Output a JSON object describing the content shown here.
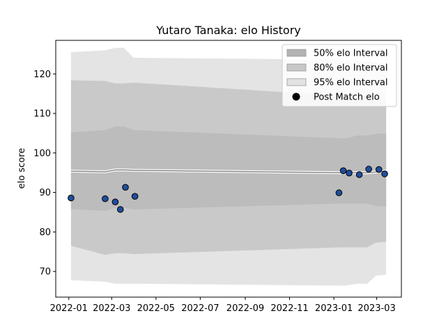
{
  "chart_data": {
    "type": "line",
    "title": "Yutaro Tanaka: elo History",
    "xlabel": "",
    "ylabel": "elo score",
    "xlim": [
      "2021-12-14",
      "2023-04-04"
    ],
    "ylim": [
      63.5,
      128.5
    ],
    "x_ticks": [
      "2022-01",
      "2022-03",
      "2022-05",
      "2022-07",
      "2022-09",
      "2022-11",
      "2023-01",
      "2023-03"
    ],
    "y_ticks": [
      70,
      80,
      90,
      100,
      110,
      120
    ],
    "grid": false,
    "legend_position": "top-right",
    "legend": [
      {
        "label": "50% elo Interval",
        "color": "#b3b3b3",
        "kind": "patch"
      },
      {
        "label": "80% elo Interval",
        "color": "#c7c7c7",
        "kind": "patch"
      },
      {
        "label": "95% elo Interval",
        "color": "#e2e2e2",
        "kind": "patch"
      },
      {
        "label": "Post Match elo",
        "color": "#000000",
        "kind": "marker"
      }
    ],
    "bands": [
      {
        "name": "95% elo Interval",
        "color": "#e4e4e4",
        "x": [
          "2022-01-04",
          "2022-02-20",
          "2022-03-06",
          "2022-03-18",
          "2022-03-31",
          "2023-01-10",
          "2023-01-17",
          "2023-02-02",
          "2023-02-16",
          "2023-02-28",
          "2023-03-14"
        ],
        "lower": [
          67.8,
          67.4,
          66.9,
          66.9,
          66.9,
          66.4,
          66.4,
          66.9,
          66.9,
          68.9,
          69.2
        ],
        "upper": [
          125.5,
          126.0,
          126.6,
          126.6,
          124.1,
          123.6,
          123.6,
          123.3,
          123.3,
          122.8,
          122.6
        ]
      },
      {
        "name": "80% elo Interval",
        "color": "#c9c9c9",
        "x": [
          "2022-01-04",
          "2022-02-20",
          "2022-03-06",
          "2022-03-18",
          "2022-03-31",
          "2023-01-10",
          "2023-01-17",
          "2023-02-02",
          "2023-02-16",
          "2023-02-28",
          "2023-03-14"
        ],
        "lower": [
          76.5,
          74.2,
          74.6,
          74.6,
          74.4,
          76.1,
          76.1,
          76.1,
          76.1,
          77.3,
          77.5
        ],
        "upper": [
          118.4,
          118.2,
          117.6,
          117.6,
          117.8,
          114.5,
          114.5,
          114.4,
          114.4,
          113.0,
          112.8
        ]
      },
      {
        "name": "50% elo Interval",
        "color": "#bcbcbc",
        "x": [
          "2022-01-04",
          "2022-02-20",
          "2022-03-06",
          "2022-03-18",
          "2022-03-31",
          "2023-01-10",
          "2023-01-17",
          "2023-02-02",
          "2023-02-16",
          "2023-02-28",
          "2023-03-14"
        ],
        "lower": [
          85.8,
          85.3,
          86.1,
          86.1,
          85.7,
          87.2,
          87.2,
          87.2,
          87.2,
          86.6,
          86.4
        ],
        "upper": [
          105.2,
          105.8,
          106.7,
          106.7,
          105.8,
          103.7,
          103.7,
          104.4,
          104.4,
          104.9,
          104.9
        ]
      }
    ],
    "series": [
      {
        "kind": "line",
        "color": "#888888",
        "x": [
          "2022-01-04",
          "2022-02-20",
          "2022-03-06",
          "2022-03-18",
          "2022-03-31",
          "2023-01-10",
          "2023-02-16",
          "2023-03-14"
        ],
        "y": [
          95.4,
          95.2,
          95.7,
          95.7,
          95.6,
          95.0,
          95.0,
          95.4
        ]
      },
      {
        "name": "Post Match elo",
        "kind": "scatter",
        "color": "#1f4e9c",
        "x": [
          "2022-01-04",
          "2022-02-20",
          "2022-03-06",
          "2022-03-13",
          "2022-03-20",
          "2022-04-02",
          "2023-01-08",
          "2023-01-14",
          "2023-01-22",
          "2023-02-05",
          "2023-02-18",
          "2023-03-04",
          "2023-03-12"
        ],
        "y": [
          88.6,
          88.4,
          87.6,
          85.7,
          91.3,
          89.0,
          89.9,
          95.5,
          94.9,
          94.5,
          95.9,
          95.8,
          94.7
        ]
      }
    ]
  }
}
